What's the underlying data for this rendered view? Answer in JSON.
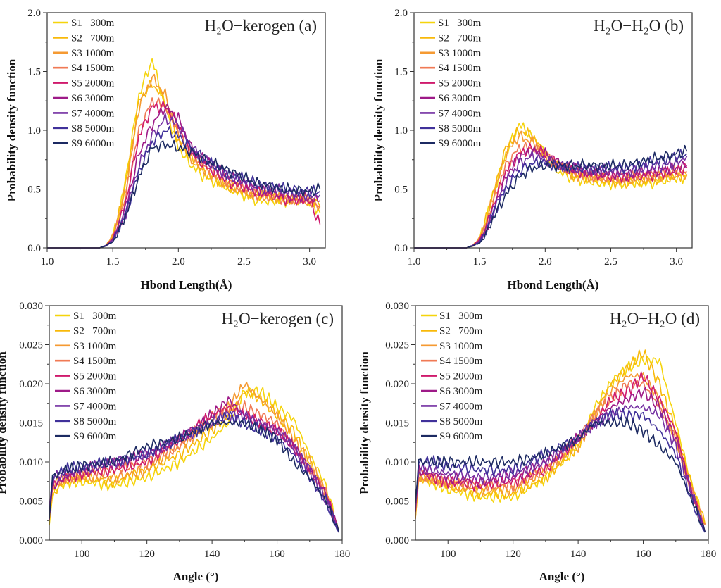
{
  "chart_data": [
    {
      "type": "line",
      "panel": "a",
      "title": "H₂O−kerogen (a)",
      "xlabel": "Hbond Length(Å)",
      "ylabel": "Probability density function",
      "xlim": [
        1.0,
        3.12
      ],
      "ylim": [
        0,
        2.0
      ],
      "xticks": [
        "1.0",
        "1.5",
        "2.0",
        "2.5",
        "3.0"
      ],
      "yticks": [
        "0.0",
        "0.5",
        "1.0",
        "1.5",
        "2.0"
      ],
      "legend": "top-left",
      "grid": false,
      "x": [
        1.0,
        1.4,
        1.45,
        1.5,
        1.55,
        1.6,
        1.7,
        1.8,
        1.9,
        2.0,
        2.1,
        2.2,
        2.4,
        2.6,
        2.8,
        3.0,
        3.08
      ],
      "series": [
        {
          "name": "S1   300m",
          "color": "#f5d40c",
          "values": [
            0,
            0,
            0.02,
            0.1,
            0.3,
            0.6,
            1.3,
            1.6,
            1.2,
            0.85,
            0.7,
            0.6,
            0.5,
            0.4,
            0.4,
            0.4,
            0.3
          ]
        },
        {
          "name": "S2   700m",
          "color": "#f8b90a",
          "values": [
            0,
            0,
            0.02,
            0.1,
            0.3,
            0.55,
            1.25,
            1.4,
            1.25,
            0.9,
            0.75,
            0.65,
            0.5,
            0.45,
            0.42,
            0.42,
            0.35
          ]
        },
        {
          "name": "S3 1000m",
          "color": "#f59a32",
          "values": [
            0,
            0,
            0.02,
            0.1,
            0.3,
            0.5,
            1.2,
            1.45,
            1.3,
            0.95,
            0.75,
            0.65,
            0.52,
            0.45,
            0.42,
            0.4,
            0.35
          ]
        },
        {
          "name": "S4 1500m",
          "color": "#f07a55",
          "values": [
            0,
            0,
            0.02,
            0.08,
            0.25,
            0.45,
            1.0,
            1.25,
            1.2,
            1.0,
            0.8,
            0.7,
            0.55,
            0.45,
            0.42,
            0.4,
            0.35
          ]
        },
        {
          "name": "S5 2000m",
          "color": "#cf1a6c",
          "values": [
            0,
            0,
            0.02,
            0.08,
            0.22,
            0.4,
            0.95,
            1.2,
            1.2,
            1.05,
            0.8,
            0.7,
            0.55,
            0.48,
            0.42,
            0.4,
            0.2
          ]
        },
        {
          "name": "S6 3000m",
          "color": "#9e1a88",
          "values": [
            0,
            0,
            0.02,
            0.07,
            0.2,
            0.35,
            0.8,
            1.05,
            1.2,
            1.1,
            0.85,
            0.75,
            0.6,
            0.5,
            0.45,
            0.42,
            0.4
          ]
        },
        {
          "name": "S7 4000m",
          "color": "#7430a2",
          "values": [
            0,
            0,
            0.02,
            0.06,
            0.18,
            0.3,
            0.7,
            0.95,
            1.1,
            1.05,
            0.85,
            0.75,
            0.6,
            0.52,
            0.48,
            0.45,
            0.45
          ]
        },
        {
          "name": "S8 5000m",
          "color": "#40319a",
          "values": [
            0,
            0,
            0.02,
            0.06,
            0.17,
            0.3,
            0.65,
            0.9,
            1.0,
            0.95,
            0.85,
            0.75,
            0.62,
            0.55,
            0.5,
            0.48,
            0.48
          ]
        },
        {
          "name": "S9 6000m",
          "color": "#1c2a62",
          "values": [
            0,
            0,
            0.02,
            0.05,
            0.15,
            0.28,
            0.6,
            0.85,
            0.88,
            0.85,
            0.82,
            0.75,
            0.65,
            0.55,
            0.5,
            0.48,
            0.5
          ]
        }
      ]
    },
    {
      "type": "line",
      "panel": "b",
      "title": "H₂O−H₂O (b)",
      "xlabel": "Hbond Length(Å)",
      "ylabel": "Probability density function",
      "xlim": [
        1.0,
        3.12
      ],
      "ylim": [
        0,
        2.0
      ],
      "xticks": [
        "1.0",
        "1.5",
        "2.0",
        "2.5",
        "3.0"
      ],
      "yticks": [
        "0.0",
        "0.5",
        "1.0",
        "1.5",
        "2.0"
      ],
      "legend": "top-left",
      "grid": false,
      "x": [
        1.0,
        1.4,
        1.45,
        1.5,
        1.55,
        1.6,
        1.7,
        1.8,
        1.9,
        2.0,
        2.1,
        2.2,
        2.4,
        2.6,
        2.8,
        3.0,
        3.08
      ],
      "series": [
        {
          "name": "S1   300m",
          "color": "#f5d40c",
          "values": [
            0,
            0,
            0.02,
            0.08,
            0.25,
            0.45,
            0.8,
            1.05,
            0.95,
            0.8,
            0.65,
            0.6,
            0.55,
            0.55,
            0.55,
            0.6,
            0.6
          ]
        },
        {
          "name": "S2   700m",
          "color": "#f8b90a",
          "values": [
            0,
            0,
            0.02,
            0.08,
            0.25,
            0.45,
            0.85,
            1.0,
            0.95,
            0.8,
            0.7,
            0.62,
            0.58,
            0.55,
            0.58,
            0.6,
            0.62
          ]
        },
        {
          "name": "S3 1000m",
          "color": "#f59a32",
          "values": [
            0,
            0,
            0.02,
            0.08,
            0.22,
            0.42,
            0.8,
            0.95,
            0.9,
            0.8,
            0.7,
            0.62,
            0.6,
            0.58,
            0.6,
            0.62,
            0.62
          ]
        },
        {
          "name": "S4 1500m",
          "color": "#f07a55",
          "values": [
            0,
            0,
            0.02,
            0.07,
            0.2,
            0.38,
            0.7,
            0.85,
            0.85,
            0.8,
            0.7,
            0.65,
            0.6,
            0.6,
            0.62,
            0.65,
            0.65
          ]
        },
        {
          "name": "S5 2000m",
          "color": "#cf1a6c",
          "values": [
            0,
            0,
            0.02,
            0.07,
            0.18,
            0.35,
            0.65,
            0.8,
            0.85,
            0.8,
            0.72,
            0.65,
            0.62,
            0.6,
            0.62,
            0.65,
            0.68
          ]
        },
        {
          "name": "S6 3000m",
          "color": "#9e1a88",
          "values": [
            0,
            0,
            0.02,
            0.06,
            0.16,
            0.32,
            0.6,
            0.78,
            0.82,
            0.8,
            0.72,
            0.68,
            0.64,
            0.62,
            0.65,
            0.68,
            0.7
          ]
        },
        {
          "name": "S7 4000m",
          "color": "#7430a2",
          "values": [
            0,
            0,
            0.02,
            0.05,
            0.15,
            0.3,
            0.55,
            0.72,
            0.78,
            0.75,
            0.7,
            0.68,
            0.66,
            0.65,
            0.68,
            0.72,
            0.78
          ]
        },
        {
          "name": "S8 5000m",
          "color": "#40319a",
          "values": [
            0,
            0,
            0.02,
            0.05,
            0.14,
            0.28,
            0.5,
            0.65,
            0.72,
            0.72,
            0.7,
            0.68,
            0.68,
            0.68,
            0.72,
            0.78,
            0.8
          ]
        },
        {
          "name": "S9 6000m",
          "color": "#1c2a62",
          "values": [
            0,
            0,
            0.02,
            0.04,
            0.12,
            0.25,
            0.45,
            0.6,
            0.68,
            0.7,
            0.7,
            0.7,
            0.7,
            0.7,
            0.75,
            0.8,
            0.82
          ]
        }
      ]
    },
    {
      "type": "line",
      "panel": "c",
      "title": "H₂O−kerogen (c)",
      "xlabel": "Angle (°)",
      "ylabel": "Probability density function",
      "xlim": [
        90,
        180
      ],
      "ylim": [
        0,
        0.03
      ],
      "xticks": [
        "100",
        "120",
        "140",
        "160",
        "180"
      ],
      "yticks": [
        "0.000",
        "0.005",
        "0.010",
        "0.015",
        "0.020",
        "0.025",
        "0.030"
      ],
      "legend": "top-left",
      "grid": false,
      "x": [
        90,
        91,
        95,
        100,
        110,
        120,
        130,
        140,
        145,
        150,
        155,
        160,
        165,
        170,
        175,
        179
      ],
      "series": [
        {
          "name": "S1   300m",
          "color": "#f5d40c",
          "values": [
            0.002,
            0.006,
            0.0075,
            0.0075,
            0.007,
            0.008,
            0.01,
            0.013,
            0.015,
            0.019,
            0.019,
            0.017,
            0.0155,
            0.011,
            0.007,
            0.001
          ]
        },
        {
          "name": "S2   700m",
          "color": "#f8b90a",
          "values": [
            0.003,
            0.006,
            0.0075,
            0.008,
            0.0075,
            0.009,
            0.011,
            0.014,
            0.016,
            0.019,
            0.018,
            0.016,
            0.014,
            0.01,
            0.006,
            0.001
          ]
        },
        {
          "name": "S3 1000m",
          "color": "#f59a32",
          "values": [
            0.003,
            0.007,
            0.008,
            0.008,
            0.008,
            0.009,
            0.012,
            0.015,
            0.017,
            0.02,
            0.018,
            0.016,
            0.013,
            0.01,
            0.006,
            0.001
          ]
        },
        {
          "name": "S4 1500m",
          "color": "#f07a55",
          "values": [
            0.003,
            0.007,
            0.008,
            0.0085,
            0.009,
            0.01,
            0.012,
            0.016,
            0.017,
            0.017,
            0.016,
            0.015,
            0.012,
            0.009,
            0.006,
            0.001
          ]
        },
        {
          "name": "S5 2000m",
          "color": "#cf1a6c",
          "values": [
            0.003,
            0.007,
            0.008,
            0.0085,
            0.009,
            0.01,
            0.013,
            0.016,
            0.017,
            0.016,
            0.015,
            0.014,
            0.012,
            0.009,
            0.006,
            0.001
          ]
        },
        {
          "name": "S6 3000m",
          "color": "#9e1a88",
          "values": [
            0.003,
            0.007,
            0.008,
            0.009,
            0.01,
            0.011,
            0.013,
            0.016,
            0.018,
            0.016,
            0.015,
            0.014,
            0.012,
            0.009,
            0.006,
            0.001
          ]
        },
        {
          "name": "S7 4000m",
          "color": "#7430a2",
          "values": [
            0.003,
            0.008,
            0.0085,
            0.009,
            0.01,
            0.011,
            0.013,
            0.015,
            0.016,
            0.016,
            0.015,
            0.014,
            0.012,
            0.009,
            0.005,
            0.001
          ]
        },
        {
          "name": "S8 5000m",
          "color": "#40319a",
          "values": [
            0.003,
            0.008,
            0.009,
            0.0095,
            0.01,
            0.011,
            0.013,
            0.015,
            0.016,
            0.015,
            0.014,
            0.013,
            0.011,
            0.008,
            0.005,
            0.001
          ]
        },
        {
          "name": "S9 6000m",
          "color": "#1c2a62",
          "values": [
            0.003,
            0.008,
            0.009,
            0.0095,
            0.01,
            0.012,
            0.013,
            0.015,
            0.015,
            0.015,
            0.014,
            0.013,
            0.01,
            0.008,
            0.005,
            0.001
          ]
        }
      ]
    },
    {
      "type": "line",
      "panel": "d",
      "title": "H₂O−H₂O (d)",
      "xlabel": "Angle (°)",
      "ylabel": "Probability density function",
      "xlim": [
        90,
        180
      ],
      "ylim": [
        0,
        0.03
      ],
      "xticks": [
        "100",
        "120",
        "140",
        "160",
        "180"
      ],
      "yticks": [
        "0.000",
        "0.005",
        "0.010",
        "0.015",
        "0.020",
        "0.025",
        "0.030"
      ],
      "legend": "top-left",
      "grid": false,
      "x": [
        90,
        91,
        95,
        100,
        110,
        120,
        130,
        140,
        145,
        150,
        155,
        160,
        165,
        170,
        175,
        179
      ],
      "series": [
        {
          "name": "S1   300m",
          "color": "#f5d40c",
          "values": [
            0.003,
            0.008,
            0.0075,
            0.0065,
            0.0055,
            0.0055,
            0.008,
            0.012,
            0.017,
            0.02,
            0.022,
            0.023,
            0.023,
            0.015,
            0.007,
            0.002
          ]
        },
        {
          "name": "S2   700m",
          "color": "#f8b90a",
          "values": [
            0.003,
            0.008,
            0.0075,
            0.007,
            0.006,
            0.006,
            0.008,
            0.012,
            0.016,
            0.02,
            0.022,
            0.024,
            0.02,
            0.014,
            0.007,
            0.002
          ]
        },
        {
          "name": "S3 1000m",
          "color": "#f59a32",
          "values": [
            0.003,
            0.008,
            0.008,
            0.007,
            0.0065,
            0.0065,
            0.009,
            0.012,
            0.016,
            0.019,
            0.021,
            0.021,
            0.018,
            0.013,
            0.006,
            0.002
          ]
        },
        {
          "name": "S4 1500m",
          "color": "#f07a55",
          "values": [
            0.004,
            0.008,
            0.008,
            0.0075,
            0.007,
            0.007,
            0.009,
            0.013,
            0.016,
            0.018,
            0.02,
            0.02,
            0.017,
            0.013,
            0.006,
            0.002
          ]
        },
        {
          "name": "S5 2000m",
          "color": "#cf1a6c",
          "values": [
            0.004,
            0.009,
            0.008,
            0.0075,
            0.007,
            0.0075,
            0.009,
            0.013,
            0.015,
            0.018,
            0.019,
            0.021,
            0.018,
            0.014,
            0.006,
            0.001
          ]
        },
        {
          "name": "S6 3000m",
          "color": "#9e1a88",
          "values": [
            0.004,
            0.009,
            0.0085,
            0.008,
            0.0075,
            0.008,
            0.01,
            0.013,
            0.015,
            0.017,
            0.018,
            0.019,
            0.017,
            0.013,
            0.006,
            0.001
          ]
        },
        {
          "name": "S7 4000m",
          "color": "#7430a2",
          "values": [
            0.004,
            0.009,
            0.009,
            0.0085,
            0.008,
            0.0085,
            0.01,
            0.013,
            0.015,
            0.016,
            0.017,
            0.017,
            0.016,
            0.012,
            0.006,
            0.001
          ]
        },
        {
          "name": "S8 5000m",
          "color": "#40319a",
          "values": [
            0.005,
            0.01,
            0.01,
            0.0095,
            0.009,
            0.009,
            0.011,
            0.013,
            0.015,
            0.016,
            0.016,
            0.016,
            0.014,
            0.011,
            0.005,
            0.001
          ]
        },
        {
          "name": "S9 6000m",
          "color": "#1c2a62",
          "values": [
            0.005,
            0.01,
            0.01,
            0.01,
            0.01,
            0.01,
            0.011,
            0.013,
            0.015,
            0.015,
            0.015,
            0.014,
            0.012,
            0.01,
            0.005,
            0.001
          ]
        }
      ]
    }
  ]
}
